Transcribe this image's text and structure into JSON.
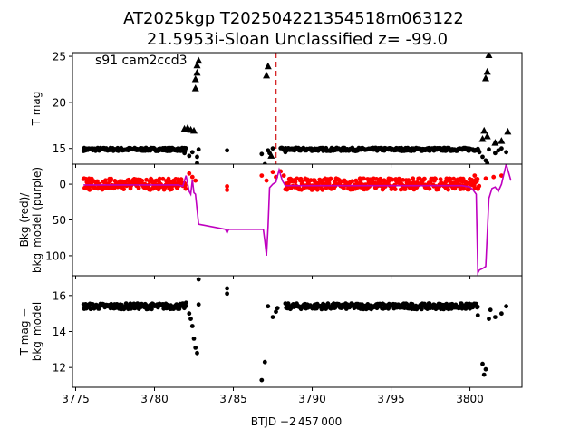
{
  "title_line1": "AT2025kgp  T202504221354518m063122",
  "title_line2": "21.5953i-Sloan Unclassified z= -99.0",
  "sector_label": "s91 cam2ccd3",
  "xlabel": "BTJD −2 457 000",
  "colors": {
    "points": "#000000",
    "bkg": "#ff0000",
    "model": "#bf00bf",
    "vline": "#d62728"
  },
  "chart_data": [
    {
      "type": "scatter",
      "panel": "top",
      "ylabel": "T mag",
      "ylim": [
        25.4,
        13.3
      ],
      "yticks": [
        15,
        20,
        25
      ],
      "xlim": [
        3774.8,
        3803.3
      ],
      "xticks": [
        3775,
        3780,
        3785,
        3790,
        3795,
        3800
      ],
      "vline_x": 3787.7,
      "series": [
        {
          "marker": "dot",
          "segments": [
            [
              3775.5,
              3782.0,
              14.9
            ],
            [
              3788.0,
              3800.6,
              14.9
            ]
          ],
          "points": [
            [
              3781.9,
              14.5
            ],
            [
              3782.2,
              14.2
            ],
            [
              3782.4,
              14.6
            ],
            [
              3782.7,
              13.4
            ],
            [
              3782.7,
              14.1
            ],
            [
              3782.8,
              14.9
            ],
            [
              3784.6,
              14.8
            ],
            [
              3786.8,
              14.4
            ],
            [
              3787.0,
              13.3
            ],
            [
              3787.2,
              14.8
            ],
            [
              3787.3,
              14.5
            ],
            [
              3787.5,
              15.0
            ],
            [
              3788.3,
              14.6
            ],
            [
              3788.5,
              14.9
            ],
            [
              3800.6,
              14.6
            ],
            [
              3800.8,
              14.1
            ],
            [
              3801.0,
              13.7
            ],
            [
              3801.1,
              13.4
            ],
            [
              3801.2,
              14.9
            ],
            [
              3801.6,
              14.5
            ],
            [
              3801.8,
              14.8
            ],
            [
              3802.0,
              15.0
            ],
            [
              3802.3,
              14.6
            ]
          ]
        },
        {
          "marker": "triangle",
          "points": [
            [
              3781.9,
              17.1
            ],
            [
              3782.1,
              17.2
            ],
            [
              3782.3,
              17.0
            ],
            [
              3782.5,
              16.9
            ],
            [
              3782.6,
              21.5
            ],
            [
              3782.6,
              22.5
            ],
            [
              3782.7,
              23.2
            ],
            [
              3782.7,
              24.0
            ],
            [
              3782.8,
              24.5
            ],
            [
              3787.1,
              22.9
            ],
            [
              3787.2,
              23.9
            ],
            [
              3787.4,
              14.2
            ],
            [
              3801.0,
              22.6
            ],
            [
              3801.1,
              23.3
            ],
            [
              3801.2,
              25.1
            ],
            [
              3800.8,
              16.0
            ],
            [
              3800.9,
              16.9
            ],
            [
              3801.1,
              16.3
            ],
            [
              3801.6,
              15.6
            ],
            [
              3802.0,
              15.8
            ],
            [
              3802.4,
              16.8
            ]
          ]
        }
      ]
    },
    {
      "type": "line",
      "panel": "middle",
      "ylabel": "Bkg (red)/\nbkg_model (purple)",
      "ylim": [
        -28,
        128
      ],
      "yticks": [
        0,
        50,
        100
      ],
      "xlim": [
        3774.8,
        3803.3
      ],
      "xticks": [
        3775,
        3780,
        3785,
        3790,
        3795,
        3800
      ],
      "series": [
        {
          "name": "bkg",
          "marker": "dot",
          "noise_band": [
            [
              3775.5,
              3782.0,
              0,
              8
            ],
            [
              3788.3,
              3800.6,
              0,
              8
            ]
          ],
          "points": [
            [
              3782.2,
              -15
            ],
            [
              3782.4,
              -10
            ],
            [
              3782.6,
              -5
            ],
            [
              3784.6,
              3
            ],
            [
              3784.6,
              8
            ],
            [
              3786.8,
              -12
            ],
            [
              3787.1,
              -5
            ],
            [
              3787.5,
              -17
            ],
            [
              3787.7,
              -10
            ],
            [
              3788.0,
              -18
            ],
            [
              3788.2,
              -12
            ],
            [
              3800.3,
              -12
            ],
            [
              3801.0,
              -8
            ],
            [
              3801.5,
              -10
            ],
            [
              3802.0,
              -12
            ]
          ]
        },
        {
          "name": "bkg_model",
          "line": [
            [
              3775.5,
              1
            ],
            [
              3781.5,
              1
            ],
            [
              3781.8,
              3
            ],
            [
              3782.0,
              -12
            ],
            [
              3782.2,
              10
            ],
            [
              3782.3,
              14
            ],
            [
              3782.4,
              -6
            ],
            [
              3782.5,
              12
            ],
            [
              3782.6,
              14
            ],
            [
              3782.8,
              56
            ],
            [
              3784.5,
              63
            ],
            [
              3784.6,
              68
            ],
            [
              3784.7,
              63
            ],
            [
              3786.9,
              63
            ],
            [
              3787.0,
              80
            ],
            [
              3787.1,
              100
            ],
            [
              3787.2,
              60
            ],
            [
              3787.3,
              5
            ],
            [
              3787.5,
              0
            ],
            [
              3787.7,
              -3
            ],
            [
              3787.9,
              -20
            ],
            [
              3788.1,
              -5
            ],
            [
              3788.3,
              2
            ],
            [
              3799.5,
              2
            ],
            [
              3800.0,
              4
            ],
            [
              3800.2,
              8
            ],
            [
              3800.4,
              14
            ],
            [
              3800.5,
              124
            ],
            [
              3800.6,
              120
            ],
            [
              3800.8,
              118
            ],
            [
              3801.0,
              115
            ],
            [
              3801.2,
              20
            ],
            [
              3801.4,
              6
            ],
            [
              3801.6,
              4
            ],
            [
              3801.8,
              10
            ],
            [
              3802.0,
              0
            ],
            [
              3802.3,
              -28
            ],
            [
              3802.6,
              -5
            ]
          ]
        }
      ]
    },
    {
      "type": "scatter",
      "panel": "bottom",
      "ylabel": "T mag −\nbkg_model",
      "ylim": [
        17.1,
        10.9
      ],
      "yticks": [
        12,
        14,
        16
      ],
      "xlim": [
        3774.8,
        3803.3
      ],
      "xticks": [
        3775,
        3780,
        3785,
        3790,
        3795,
        3800
      ],
      "series": [
        {
          "marker": "dot",
          "segments": [
            [
              3775.5,
              3782.0,
              15.4
            ],
            [
              3788.3,
              3800.5,
              15.4
            ]
          ],
          "points": [
            [
              3782.0,
              15.6
            ],
            [
              3782.2,
              15.0
            ],
            [
              3782.3,
              14.7
            ],
            [
              3782.4,
              14.3
            ],
            [
              3782.5,
              13.6
            ],
            [
              3782.6,
              13.1
            ],
            [
              3782.7,
              12.8
            ],
            [
              3782.8,
              15.5
            ],
            [
              3782.8,
              16.9
            ],
            [
              3784.6,
              16.1
            ],
            [
              3784.6,
              16.4
            ],
            [
              3786.8,
              11.3
            ],
            [
              3787.0,
              12.3
            ],
            [
              3787.2,
              15.4
            ],
            [
              3787.5,
              14.8
            ],
            [
              3787.7,
              15.1
            ],
            [
              3787.8,
              15.3
            ],
            [
              3800.5,
              14.9
            ],
            [
              3800.8,
              12.2
            ],
            [
              3800.9,
              11.6
            ],
            [
              3801.0,
              11.9
            ],
            [
              3801.2,
              14.7
            ],
            [
              3801.3,
              15.2
            ],
            [
              3801.6,
              14.8
            ],
            [
              3802.0,
              15.0
            ],
            [
              3802.3,
              15.4
            ]
          ]
        }
      ]
    }
  ]
}
